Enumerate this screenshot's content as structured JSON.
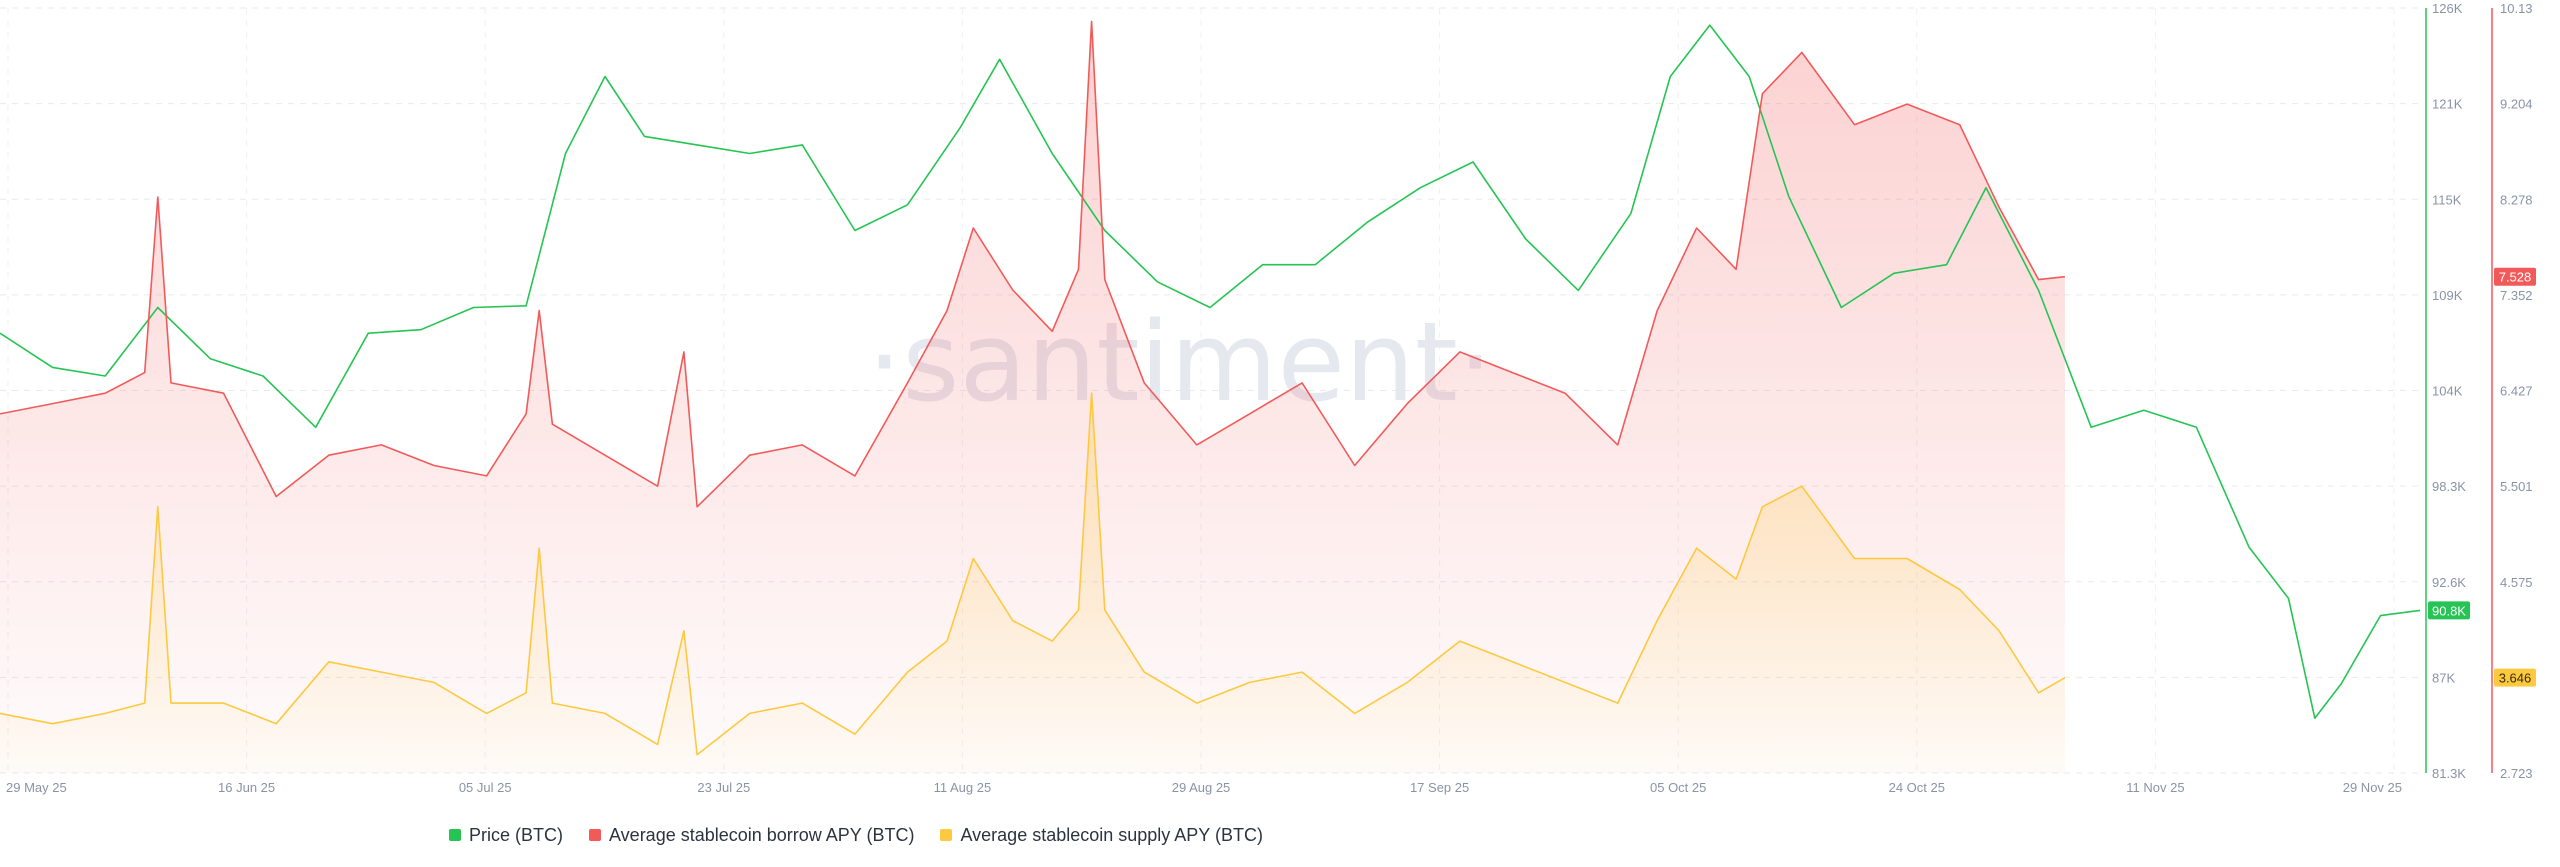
{
  "watermark": "·santiment·",
  "chart_data": {
    "type": "line",
    "title": "",
    "x": {
      "labels": [
        "29 May 25",
        "16 Jun 25",
        "05 Jul 25",
        "23 Jul 25",
        "11 Aug 25",
        "29 Aug 25",
        "17 Sep 25",
        "05 Oct 25",
        "24 Oct 25",
        "11 Nov 25",
        "29 Nov 25"
      ],
      "range": [
        "2025-05-29",
        "2025-11-29"
      ]
    },
    "y_price": {
      "ticks": [
        "126K",
        "121K",
        "115K",
        "109K",
        "104K",
        "98.3K",
        "92.6K",
        "87K",
        "81.3K"
      ],
      "range": [
        81300,
        126000
      ]
    },
    "y_apy": {
      "ticks": [
        "10.13",
        "9.204",
        "8.278",
        "7.352",
        "6.427",
        "5.501",
        "4.575",
        "3.649",
        "2.723"
      ],
      "range": [
        2.723,
        10.13
      ]
    },
    "series": [
      {
        "name": "Price (BTC)",
        "color": "#26c454",
        "axis": "price",
        "last_label": "90.8K",
        "points": [
          [
            "2025-05-29",
            107000
          ],
          [
            "2025-06-02",
            105000
          ],
          [
            "2025-06-06",
            104500
          ],
          [
            "2025-06-10",
            108500
          ],
          [
            "2025-06-14",
            105500
          ],
          [
            "2025-06-18",
            104500
          ],
          [
            "2025-06-22",
            101500
          ],
          [
            "2025-06-26",
            107000
          ],
          [
            "2025-06-30",
            107200
          ],
          [
            "2025-07-04",
            108500
          ],
          [
            "2025-07-08",
            108600
          ],
          [
            "2025-07-11",
            117500
          ],
          [
            "2025-07-14",
            122000
          ],
          [
            "2025-07-17",
            118500
          ],
          [
            "2025-07-21",
            118000
          ],
          [
            "2025-07-25",
            117500
          ],
          [
            "2025-07-29",
            118000
          ],
          [
            "2025-08-02",
            113000
          ],
          [
            "2025-08-06",
            114500
          ],
          [
            "2025-08-10",
            119000
          ],
          [
            "2025-08-13",
            123000
          ],
          [
            "2025-08-17",
            117500
          ],
          [
            "2025-08-21",
            113000
          ],
          [
            "2025-08-25",
            110000
          ],
          [
            "2025-08-29",
            108500
          ],
          [
            "2025-09-02",
            111000
          ],
          [
            "2025-09-06",
            111000
          ],
          [
            "2025-09-10",
            113500
          ],
          [
            "2025-09-14",
            115500
          ],
          [
            "2025-09-18",
            117000
          ],
          [
            "2025-09-22",
            112500
          ],
          [
            "2025-09-26",
            109500
          ],
          [
            "2025-09-30",
            114000
          ],
          [
            "2025-10-03",
            122000
          ],
          [
            "2025-10-06",
            125000
          ],
          [
            "2025-10-09",
            122000
          ],
          [
            "2025-10-12",
            115000
          ],
          [
            "2025-10-16",
            108500
          ],
          [
            "2025-10-20",
            110500
          ],
          [
            "2025-10-24",
            111000
          ],
          [
            "2025-10-27",
            115500
          ],
          [
            "2025-10-31",
            109500
          ],
          [
            "2025-11-04",
            101500
          ],
          [
            "2025-11-08",
            102500
          ],
          [
            "2025-11-12",
            101500
          ],
          [
            "2025-11-16",
            94500
          ],
          [
            "2025-11-19",
            91500
          ],
          [
            "2025-11-21",
            84500
          ],
          [
            "2025-11-23",
            86500
          ],
          [
            "2025-11-26",
            90500
          ],
          [
            "2025-11-29",
            90800
          ]
        ]
      },
      {
        "name": "Average stablecoin borrow APY (BTC)",
        "color": "#f25a5a",
        "axis": "apy",
        "last_label": "7.528",
        "points": [
          [
            "2025-05-29",
            6.2
          ],
          [
            "2025-06-02",
            6.3
          ],
          [
            "2025-06-06",
            6.4
          ],
          [
            "2025-06-09",
            6.6
          ],
          [
            "2025-06-10",
            8.3
          ],
          [
            "2025-06-11",
            6.5
          ],
          [
            "2025-06-15",
            6.4
          ],
          [
            "2025-06-19",
            5.4
          ],
          [
            "2025-06-23",
            5.8
          ],
          [
            "2025-06-27",
            5.9
          ],
          [
            "2025-07-01",
            5.7
          ],
          [
            "2025-07-05",
            5.6
          ],
          [
            "2025-07-08",
            6.2
          ],
          [
            "2025-07-09",
            7.2
          ],
          [
            "2025-07-10",
            6.1
          ],
          [
            "2025-07-14",
            5.8
          ],
          [
            "2025-07-18",
            5.5
          ],
          [
            "2025-07-20",
            6.8
          ],
          [
            "2025-07-21",
            5.3
          ],
          [
            "2025-07-25",
            5.8
          ],
          [
            "2025-07-29",
            5.9
          ],
          [
            "2025-08-02",
            5.6
          ],
          [
            "2025-08-06",
            6.5
          ],
          [
            "2025-08-09",
            7.2
          ],
          [
            "2025-08-11",
            8.0
          ],
          [
            "2025-08-14",
            7.4
          ],
          [
            "2025-08-17",
            7.0
          ],
          [
            "2025-08-19",
            7.6
          ],
          [
            "2025-08-20",
            10.0
          ],
          [
            "2025-08-21",
            7.5
          ],
          [
            "2025-08-24",
            6.5
          ],
          [
            "2025-08-28",
            5.9
          ],
          [
            "2025-09-01",
            6.2
          ],
          [
            "2025-09-05",
            6.5
          ],
          [
            "2025-09-09",
            5.7
          ],
          [
            "2025-09-13",
            6.3
          ],
          [
            "2025-09-17",
            6.8
          ],
          [
            "2025-09-21",
            6.6
          ],
          [
            "2025-09-25",
            6.4
          ],
          [
            "2025-09-29",
            5.9
          ],
          [
            "2025-10-02",
            7.2
          ],
          [
            "2025-10-05",
            8.0
          ],
          [
            "2025-10-08",
            7.6
          ],
          [
            "2025-10-10",
            9.3
          ],
          [
            "2025-10-13",
            9.7
          ],
          [
            "2025-10-17",
            9.0
          ],
          [
            "2025-10-21",
            9.2
          ],
          [
            "2025-10-25",
            9.0
          ],
          [
            "2025-10-28",
            8.2
          ],
          [
            "2025-10-31",
            7.5
          ],
          [
            "2025-11-02",
            7.528
          ]
        ]
      },
      {
        "name": "Average stablecoin supply APY (BTC)",
        "color": "#fcc940",
        "axis": "apy",
        "last_label": "3.646",
        "points": [
          [
            "2025-05-29",
            3.3
          ],
          [
            "2025-06-02",
            3.2
          ],
          [
            "2025-06-06",
            3.3
          ],
          [
            "2025-06-09",
            3.4
          ],
          [
            "2025-06-10",
            5.3
          ],
          [
            "2025-06-11",
            3.4
          ],
          [
            "2025-06-15",
            3.4
          ],
          [
            "2025-06-19",
            3.2
          ],
          [
            "2025-06-23",
            3.8
          ],
          [
            "2025-06-27",
            3.7
          ],
          [
            "2025-07-01",
            3.6
          ],
          [
            "2025-07-05",
            3.3
          ],
          [
            "2025-07-08",
            3.5
          ],
          [
            "2025-07-09",
            4.9
          ],
          [
            "2025-07-10",
            3.4
          ],
          [
            "2025-07-14",
            3.3
          ],
          [
            "2025-07-18",
            3.0
          ],
          [
            "2025-07-20",
            4.1
          ],
          [
            "2025-07-21",
            2.9
          ],
          [
            "2025-07-25",
            3.3
          ],
          [
            "2025-07-29",
            3.4
          ],
          [
            "2025-08-02",
            3.1
          ],
          [
            "2025-08-06",
            3.7
          ],
          [
            "2025-08-09",
            4.0
          ],
          [
            "2025-08-11",
            4.8
          ],
          [
            "2025-08-14",
            4.2
          ],
          [
            "2025-08-17",
            4.0
          ],
          [
            "2025-08-19",
            4.3
          ],
          [
            "2025-08-20",
            6.4
          ],
          [
            "2025-08-21",
            4.3
          ],
          [
            "2025-08-24",
            3.7
          ],
          [
            "2025-08-28",
            3.4
          ],
          [
            "2025-09-01",
            3.6
          ],
          [
            "2025-09-05",
            3.7
          ],
          [
            "2025-09-09",
            3.3
          ],
          [
            "2025-09-13",
            3.6
          ],
          [
            "2025-09-17",
            4.0
          ],
          [
            "2025-09-21",
            3.8
          ],
          [
            "2025-09-25",
            3.6
          ],
          [
            "2025-09-29",
            3.4
          ],
          [
            "2025-10-02",
            4.2
          ],
          [
            "2025-10-05",
            4.9
          ],
          [
            "2025-10-08",
            4.6
          ],
          [
            "2025-10-10",
            5.3
          ],
          [
            "2025-10-13",
            5.5
          ],
          [
            "2025-10-17",
            4.8
          ],
          [
            "2025-10-21",
            4.8
          ],
          [
            "2025-10-25",
            4.5
          ],
          [
            "2025-10-28",
            4.1
          ],
          [
            "2025-10-31",
            3.5
          ],
          [
            "2025-11-02",
            3.646
          ]
        ]
      }
    ],
    "grid": true,
    "legend_position": "bottom-center"
  }
}
